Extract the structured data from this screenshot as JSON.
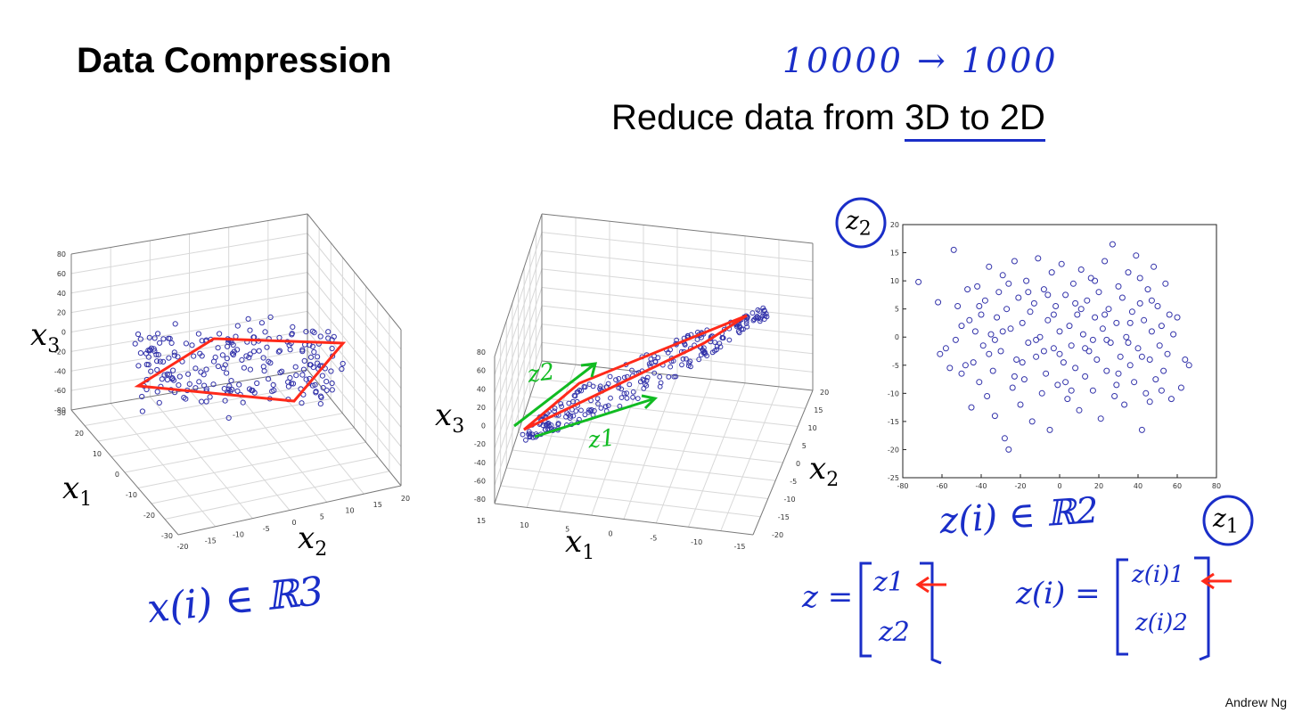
{
  "slide": {
    "title": "Data Compression",
    "subtitle_prefix": "Reduce data from ",
    "subtitle_highlight": "3D to 2D",
    "annotation_top": "10000 → 1000",
    "credit": "Andrew Ng",
    "colors": {
      "points": "#3333aa",
      "plane": "#ff2a1a",
      "arrows": "#11bb22",
      "ink": "#1a2ec8"
    }
  },
  "left_plot": {
    "xlabel_3": "x",
    "xlabel_3_sub": "3",
    "xlabel_1": "x",
    "xlabel_1_sub": "1",
    "xlabel_2": "x",
    "xlabel_2_sub": "2",
    "x3_ticks": [
      "80",
      "60",
      "40",
      "20",
      "0",
      "-20",
      "-40",
      "-60",
      "-80"
    ],
    "x1_ticks": [
      "30",
      "20",
      "10",
      "0",
      "-10",
      "-20",
      "-30"
    ],
    "x2_ticks": [
      "-20",
      "-15",
      "-10",
      "-5",
      "0",
      "5",
      "10",
      "15",
      "20"
    ],
    "annotation": "x(i) ∈ ℝ3"
  },
  "middle_plot": {
    "xlabel_3": "x",
    "xlabel_3_sub": "3",
    "xlabel_1": "x",
    "xlabel_1_sub": "1",
    "xlabel_2": "x",
    "xlabel_2_sub": "2",
    "x3_ticks": [
      "80",
      "60",
      "40",
      "20",
      "0",
      "-20",
      "-40",
      "-60",
      "-80"
    ],
    "x1_ticks": [
      "15",
      "10",
      "5",
      "0",
      "-5",
      "-10",
      "-15"
    ],
    "x2_ticks": [
      "20",
      "15",
      "10",
      "5",
      "0",
      "-5",
      "-10",
      "-15",
      "-20"
    ],
    "z2_label": "z2",
    "z1_label": "z1"
  },
  "chart_data": {
    "type": "scatter",
    "xlabel": "z1",
    "ylabel": "z2",
    "xlim": [
      -80,
      80
    ],
    "ylim": [
      -25,
      20
    ],
    "x_ticks": [
      -80,
      -60,
      -40,
      -20,
      0,
      20,
      40,
      60,
      80
    ],
    "y_ticks": [
      20,
      15,
      10,
      5,
      0,
      -5,
      -10,
      -15,
      -20,
      -25
    ],
    "points": [
      [
        -72,
        9.8
      ],
      [
        -62,
        6.2
      ],
      [
        -61,
        -3.0
      ],
      [
        -58,
        -2.0
      ],
      [
        -54,
        15.5
      ],
      [
        -52,
        5.5
      ],
      [
        -50,
        2.0
      ],
      [
        -48,
        -5.0
      ],
      [
        -47,
        8.5
      ],
      [
        -46,
        3.0
      ],
      [
        -44,
        -4.5
      ],
      [
        -43,
        1.0
      ],
      [
        -42,
        9.0
      ],
      [
        -41,
        -8.0
      ],
      [
        -40,
        4.0
      ],
      [
        -39,
        -1.5
      ],
      [
        -38,
        6.5
      ],
      [
        -37,
        -10.5
      ],
      [
        -36,
        12.5
      ],
      [
        -35,
        0.5
      ],
      [
        -34,
        -6.0
      ],
      [
        -33,
        -14.0
      ],
      [
        -32,
        3.5
      ],
      [
        -31,
        8.0
      ],
      [
        -30,
        -2.5
      ],
      [
        -29,
        11.0
      ],
      [
        -28,
        -18.0
      ],
      [
        -27,
        5.0
      ],
      [
        -26,
        -20.0
      ],
      [
        -25,
        1.5
      ],
      [
        -24,
        -9.0
      ],
      [
        -23,
        13.5
      ],
      [
        -22,
        -4.0
      ],
      [
        -21,
        7.0
      ],
      [
        -20,
        -12.0
      ],
      [
        -19,
        2.5
      ],
      [
        -18,
        -7.5
      ],
      [
        -17,
        10.0
      ],
      [
        -16,
        -1.0
      ],
      [
        -15,
        4.5
      ],
      [
        -14,
        -15.0
      ],
      [
        -13,
        6.0
      ],
      [
        -12,
        -3.5
      ],
      [
        -11,
        14.0
      ],
      [
        -10,
        0.0
      ],
      [
        -9,
        -10.0
      ],
      [
        -8,
        8.5
      ],
      [
        -7,
        -6.5
      ],
      [
        -6,
        3.0
      ],
      [
        -5,
        -16.5
      ],
      [
        -4,
        11.5
      ],
      [
        -3,
        -2.0
      ],
      [
        -2,
        5.5
      ],
      [
        -1,
        -8.5
      ],
      [
        0,
        1.0
      ],
      [
        1,
        13.0
      ],
      [
        2,
        -4.5
      ],
      [
        3,
        7.5
      ],
      [
        4,
        -11.0
      ],
      [
        5,
        2.0
      ],
      [
        6,
        -1.5
      ],
      [
        7,
        9.5
      ],
      [
        8,
        -5.5
      ],
      [
        9,
        4.0
      ],
      [
        10,
        -13.0
      ],
      [
        11,
        12.0
      ],
      [
        12,
        0.5
      ],
      [
        13,
        -7.0
      ],
      [
        14,
        6.5
      ],
      [
        15,
        -2.5
      ],
      [
        16,
        10.5
      ],
      [
        17,
        -9.5
      ],
      [
        18,
        3.5
      ],
      [
        19,
        -4.0
      ],
      [
        20,
        8.0
      ],
      [
        21,
        -14.5
      ],
      [
        22,
        1.5
      ],
      [
        23,
        13.5
      ],
      [
        24,
        -6.0
      ],
      [
        25,
        5.0
      ],
      [
        26,
        -1.0
      ],
      [
        27,
        16.5
      ],
      [
        28,
        -10.5
      ],
      [
        29,
        2.5
      ],
      [
        30,
        9.0
      ],
      [
        31,
        -3.5
      ],
      [
        32,
        7.0
      ],
      [
        33,
        -12.0
      ],
      [
        34,
        0.0
      ],
      [
        35,
        11.5
      ],
      [
        36,
        -5.0
      ],
      [
        37,
        4.5
      ],
      [
        38,
        -8.0
      ],
      [
        39,
        14.5
      ],
      [
        40,
        -2.0
      ],
      [
        41,
        6.0
      ],
      [
        42,
        -16.5
      ],
      [
        43,
        3.0
      ],
      [
        44,
        -10.0
      ],
      [
        45,
        8.5
      ],
      [
        46,
        -4.0
      ],
      [
        47,
        1.0
      ],
      [
        48,
        12.5
      ],
      [
        49,
        -7.5
      ],
      [
        50,
        5.5
      ],
      [
        51,
        -1.5
      ],
      [
        52,
        2.0
      ],
      [
        53,
        -6.0
      ],
      [
        54,
        9.5
      ],
      [
        55,
        -3.0
      ],
      [
        56,
        4.0
      ],
      [
        57,
        -11.0
      ],
      [
        58,
        0.5
      ],
      [
        60,
        3.5
      ],
      [
        62,
        -9.0
      ],
      [
        64,
        -4.0
      ],
      [
        66,
        -5.0
      ],
      [
        -56,
        -5.5
      ],
      [
        -53,
        -0.5
      ],
      [
        -45,
        -12.5
      ],
      [
        -36,
        -3.0
      ],
      [
        -29,
        1.0
      ],
      [
        -23,
        -7.0
      ],
      [
        -16,
        8.0
      ],
      [
        -8,
        -2.5
      ],
      [
        -3,
        4.0
      ],
      [
        3,
        -8.0
      ],
      [
        8,
        6.0
      ],
      [
        13,
        -2.0
      ],
      [
        18,
        10.0
      ],
      [
        24,
        -0.5
      ],
      [
        30,
        -6.5
      ],
      [
        36,
        2.5
      ],
      [
        42,
        -3.5
      ],
      [
        47,
        6.5
      ],
      [
        52,
        -9.5
      ],
      [
        -50,
        -6.5
      ],
      [
        -41,
        5.5
      ],
      [
        -33,
        -0.5
      ],
      [
        -26,
        9.5
      ],
      [
        -19,
        -4.5
      ],
      [
        -12,
        -0.5
      ],
      [
        -6,
        7.5
      ],
      [
        0,
        -3.0
      ],
      [
        6,
        -9.5
      ],
      [
        11,
        5.0
      ],
      [
        17,
        -0.5
      ],
      [
        23,
        4.0
      ],
      [
        29,
        -8.5
      ],
      [
        35,
        -1.0
      ],
      [
        41,
        10.5
      ],
      [
        46,
        -11.5
      ]
    ]
  },
  "right_plot": {
    "z2_circle": "z2",
    "z1_circle": "z1",
    "annotation": "z(i) ∈ ℝ2"
  },
  "vectors": {
    "z_lhs": "z =",
    "z_entries": [
      "z1",
      "z2"
    ],
    "zi_lhs": "z(i) =",
    "zi_entries": [
      "z(i)1",
      "z(i)2"
    ]
  }
}
